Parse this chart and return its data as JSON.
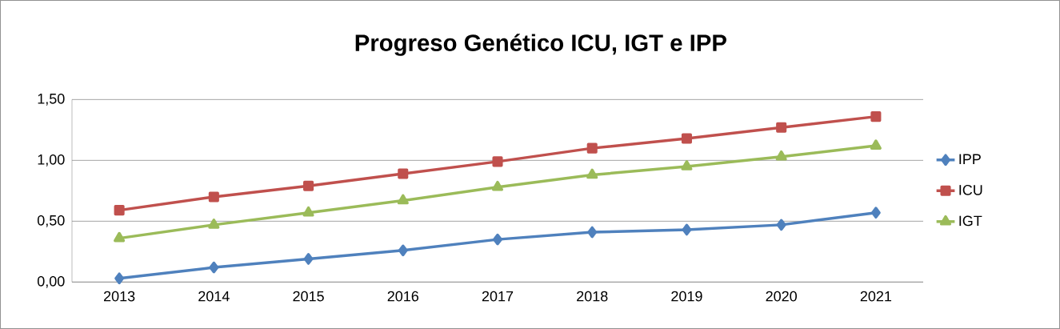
{
  "chart_data": {
    "type": "line",
    "title": "Progreso Genético ICU, IGT e IPP",
    "categories": [
      "2013",
      "2014",
      "2015",
      "2016",
      "2017",
      "2018",
      "2019",
      "2020",
      "2021"
    ],
    "series": [
      {
        "name": "IPP",
        "color": "#4f81bd",
        "marker": "diamond",
        "values": [
          0.03,
          0.12,
          0.19,
          0.26,
          0.35,
          0.41,
          0.43,
          0.47,
          0.57
        ]
      },
      {
        "name": "ICU",
        "color": "#c0504d",
        "marker": "square",
        "values": [
          0.59,
          0.7,
          0.79,
          0.89,
          0.99,
          1.1,
          1.18,
          1.27,
          1.36
        ]
      },
      {
        "name": "IGT",
        "color": "#9bbb59",
        "marker": "triangle",
        "values": [
          0.36,
          0.47,
          0.57,
          0.67,
          0.78,
          0.88,
          0.95,
          1.03,
          1.12
        ]
      }
    ],
    "ylim": [
      0,
      1.5
    ],
    "yticks": [
      {
        "value": 0,
        "label": "0,00"
      },
      {
        "value": 0.5,
        "label": "0,50"
      },
      {
        "value": 1.0,
        "label": "1,00"
      },
      {
        "value": 1.5,
        "label": "1,50"
      }
    ],
    "grid": "y",
    "legend": "right",
    "line_style": "solid"
  }
}
